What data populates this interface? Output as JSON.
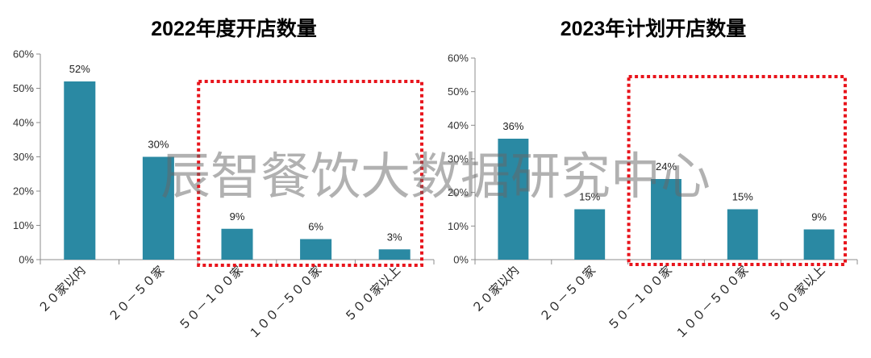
{
  "watermark": "辰智餐饮大数据研究中心",
  "colors": {
    "bar": "#2a89a3",
    "highlight": "#e8141c"
  },
  "chart_data": [
    {
      "type": "bar",
      "title": "2022年度开店数量",
      "categories": [
        "２０家以内",
        "２０－５０家",
        "５０－１００家",
        "１００－５００家",
        "５００家以上"
      ],
      "values": [
        52,
        30,
        9,
        6,
        3
      ],
      "value_labels": [
        "52%",
        "30%",
        "9%",
        "6%",
        "3%"
      ],
      "yticks": [
        "0%",
        "10%",
        "20%",
        "30%",
        "40%",
        "50%",
        "60%"
      ],
      "ylim": [
        0,
        60
      ],
      "grid": false,
      "legend": "none",
      "highlighted_category_indices": [
        2,
        3,
        4
      ]
    },
    {
      "type": "bar",
      "title": "2023年计划开店数量",
      "categories": [
        "２０家以内",
        "２０－５０家",
        "５０－１００家",
        "１００－５００家",
        "５００家以上"
      ],
      "values": [
        36,
        15,
        24,
        15,
        9
      ],
      "value_labels": [
        "36%",
        "15%",
        "24%",
        "15%",
        "9%"
      ],
      "yticks": [
        "0%",
        "10%",
        "20%",
        "30%",
        "40%",
        "50%",
        "60%"
      ],
      "ylim": [
        0,
        60
      ],
      "grid": false,
      "legend": "none",
      "highlighted_category_indices": [
        2,
        3,
        4
      ]
    }
  ]
}
